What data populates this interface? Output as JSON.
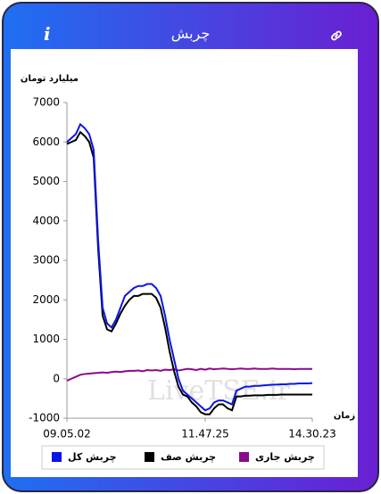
{
  "header": {
    "title": "چربش",
    "info": "i"
  },
  "chart_data": {
    "type": "line",
    "y_label": "میلیارد تومان",
    "x_label": "زمان",
    "watermark": "LiveTSE.ir",
    "categories": [
      "09.05.02",
      null,
      null,
      null,
      null,
      null,
      null,
      null,
      null,
      null,
      null,
      null,
      null,
      null,
      null,
      null,
      null,
      null,
      null,
      null,
      null,
      null,
      null,
      null,
      null,
      null,
      null,
      null,
      null,
      null,
      null,
      "11.47.25",
      null,
      null,
      null,
      null,
      null,
      null,
      null,
      null,
      null,
      null,
      null,
      null,
      null,
      null,
      null,
      null,
      null,
      null,
      null,
      null,
      null,
      null,
      null,
      "14.30.23"
    ],
    "ylim": [
      -1000,
      7000
    ],
    "yticks": [
      -1000,
      0,
      1000,
      2000,
      3000,
      4000,
      5000,
      6000,
      7000
    ],
    "series": [
      {
        "name": "چربش کل",
        "color": "#0a14e8",
        "values": [
          6000,
          6100,
          6200,
          6450,
          6350,
          6200,
          5800,
          3500,
          1800,
          1400,
          1300,
          1500,
          1800,
          2100,
          2200,
          2300,
          2350,
          2350,
          2400,
          2400,
          2300,
          2100,
          1600,
          1000,
          500,
          0,
          -300,
          -400,
          -500,
          -600,
          -700,
          -800,
          -750,
          -600,
          -550,
          -550,
          -600,
          -650,
          -300,
          -250,
          -200,
          -200,
          -180,
          -180,
          -170,
          -160,
          -150,
          -150,
          -140,
          -140,
          -130,
          -130,
          -120,
          -120,
          -120,
          -110
        ]
      },
      {
        "name": "چربش صف",
        "color": "#000000",
        "values": [
          5950,
          6000,
          6050,
          6250,
          6150,
          6000,
          5600,
          3300,
          1600,
          1250,
          1200,
          1400,
          1650,
          1850,
          2000,
          2100,
          2100,
          2150,
          2150,
          2150,
          2050,
          1800,
          1300,
          700,
          200,
          -200,
          -400,
          -450,
          -600,
          -700,
          -850,
          -900,
          -900,
          -750,
          -650,
          -650,
          -750,
          -800,
          -450,
          -450,
          -430,
          -430,
          -420,
          -420,
          -420,
          -410,
          -410,
          -410,
          -400,
          -400,
          -400,
          -400,
          -400,
          -400,
          -400,
          -400
        ]
      },
      {
        "name": "چربش جاری",
        "color": "#8b0a8b",
        "values": [
          -50,
          0,
          50,
          100,
          120,
          130,
          140,
          150,
          160,
          150,
          170,
          180,
          170,
          190,
          200,
          200,
          210,
          190,
          220,
          210,
          220,
          200,
          230,
          220,
          240,
          210,
          230,
          250,
          240,
          220,
          250,
          230,
          260,
          240,
          250,
          260,
          250,
          240,
          250,
          260,
          250,
          250,
          260,
          250,
          250,
          250,
          260,
          250,
          250,
          250,
          250,
          240,
          250,
          250,
          250,
          250
        ]
      }
    ]
  }
}
